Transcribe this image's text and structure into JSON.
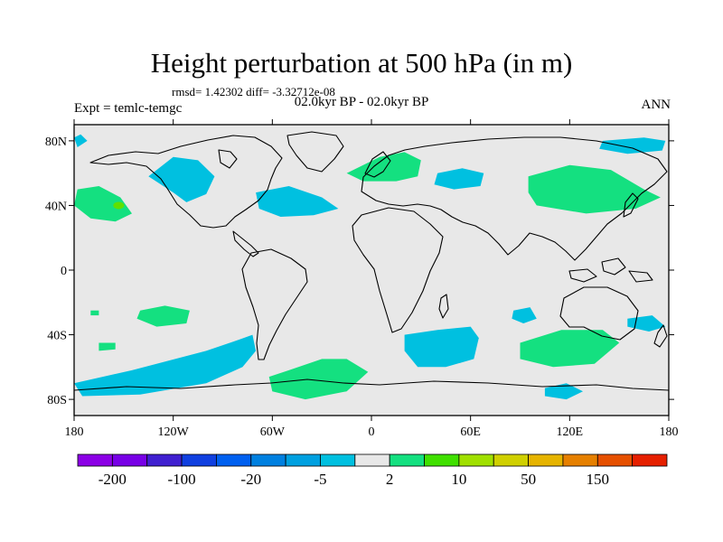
{
  "title": "Height perturbation at 500 hPa (in m)",
  "stats": "rmsd= 1.42302 diff= -3.32712e-08",
  "experiment": "Expt = temlc-temgc",
  "period": "02.0kyr BP - 02.0kyr BP",
  "season": "ANN",
  "map": {
    "lon_range": [
      -180,
      180
    ],
    "lat_range": [
      -90,
      90
    ],
    "background_color": "#e8e8e8",
    "lat_ticks": [
      {
        "value": 80,
        "label": "80N"
      },
      {
        "value": 40,
        "label": "40N"
      },
      {
        "value": 0,
        "label": "0"
      },
      {
        "value": -40,
        "label": "40S"
      },
      {
        "value": -80,
        "label": "80S"
      }
    ],
    "lon_ticks": [
      {
        "value": -180,
        "label": "180"
      },
      {
        "value": -120,
        "label": "120W"
      },
      {
        "value": -60,
        "label": "60W"
      },
      {
        "value": 0,
        "label": "0"
      },
      {
        "value": 60,
        "label": "60E"
      },
      {
        "value": 120,
        "label": "120E"
      },
      {
        "value": 180,
        "label": "180"
      }
    ],
    "anomalies": [
      {
        "sign": "negative",
        "color": "#00c0e0",
        "points": [
          [
            -120,
            70
          ],
          [
            -105,
            68
          ],
          [
            -95,
            58
          ],
          [
            -100,
            47
          ],
          [
            -112,
            42
          ],
          [
            -120,
            48
          ],
          [
            -135,
            58
          ]
        ]
      },
      {
        "sign": "negative",
        "color": "#00c0e0",
        "points": [
          [
            -70,
            48
          ],
          [
            -50,
            52
          ],
          [
            -30,
            45
          ],
          [
            -20,
            38
          ],
          [
            -35,
            34
          ],
          [
            -55,
            33
          ],
          [
            -68,
            38
          ]
        ]
      },
      {
        "sign": "negative",
        "color": "#00c0e0",
        "points": [
          [
            140,
            80
          ],
          [
            165,
            82
          ],
          [
            178,
            80
          ],
          [
            176,
            74
          ],
          [
            155,
            72
          ],
          [
            138,
            75
          ]
        ]
      },
      {
        "sign": "negative",
        "color": "#00c0e0",
        "points": [
          [
            -180,
            82
          ],
          [
            -176,
            84
          ],
          [
            -172,
            80
          ],
          [
            -178,
            76
          ]
        ]
      },
      {
        "sign": "negative",
        "color": "#00c0e0",
        "points": [
          [
            40,
            60
          ],
          [
            55,
            63
          ],
          [
            68,
            60
          ],
          [
            66,
            52
          ],
          [
            50,
            50
          ],
          [
            38,
            53
          ]
        ]
      },
      {
        "sign": "negative",
        "color": "#00c0e0",
        "points": [
          [
            -180,
            -70
          ],
          [
            -145,
            -62
          ],
          [
            -100,
            -50
          ],
          [
            -80,
            -43
          ],
          [
            -72,
            -40
          ],
          [
            -70,
            -50
          ],
          [
            -78,
            -60
          ],
          [
            -100,
            -70
          ],
          [
            -140,
            -77
          ],
          [
            -175,
            -78
          ]
        ]
      },
      {
        "sign": "negative",
        "color": "#00c0e0",
        "points": [
          [
            20,
            -40
          ],
          [
            40,
            -37
          ],
          [
            60,
            -35
          ],
          [
            65,
            -42
          ],
          [
            62,
            -55
          ],
          [
            45,
            -60
          ],
          [
            28,
            -60
          ],
          [
            20,
            -50
          ]
        ]
      },
      {
        "sign": "negative",
        "color": "#00c0e0",
        "points": [
          [
            86,
            -25
          ],
          [
            96,
            -23
          ],
          [
            100,
            -30
          ],
          [
            92,
            -33
          ],
          [
            85,
            -30
          ]
        ]
      },
      {
        "sign": "negative",
        "color": "#00c0e0",
        "points": [
          [
            155,
            -30
          ],
          [
            170,
            -28
          ],
          [
            178,
            -35
          ],
          [
            168,
            -38
          ],
          [
            155,
            -35
          ]
        ]
      },
      {
        "sign": "negative",
        "color": "#00c0e0",
        "points": [
          [
            105,
            -73
          ],
          [
            118,
            -70
          ],
          [
            128,
            -75
          ],
          [
            118,
            -80
          ],
          [
            105,
            -78
          ]
        ]
      },
      {
        "sign": "positive",
        "color": "#14e080",
        "points": [
          [
            -178,
            50
          ],
          [
            -165,
            52
          ],
          [
            -152,
            45
          ],
          [
            -145,
            35
          ],
          [
            -155,
            30
          ],
          [
            -170,
            32
          ],
          [
            -180,
            40
          ]
        ]
      },
      {
        "sign": "positive",
        "color": "#14e080",
        "points": [
          [
            -15,
            60
          ],
          [
            5,
            70
          ],
          [
            20,
            73
          ],
          [
            30,
            68
          ],
          [
            28,
            58
          ],
          [
            15,
            55
          ],
          [
            -5,
            55
          ]
        ]
      },
      {
        "sign": "positive",
        "color": "#14e080",
        "points": [
          [
            95,
            58
          ],
          [
            120,
            65
          ],
          [
            145,
            62
          ],
          [
            165,
            50
          ],
          [
            175,
            45
          ],
          [
            160,
            38
          ],
          [
            130,
            35
          ],
          [
            100,
            40
          ],
          [
            95,
            48
          ]
        ]
      },
      {
        "sign": "positive",
        "color": "#14e080",
        "points": [
          [
            -140,
            -25
          ],
          [
            -125,
            -22
          ],
          [
            -110,
            -25
          ],
          [
            -112,
            -33
          ],
          [
            -130,
            -35
          ],
          [
            -142,
            -30
          ]
        ]
      },
      {
        "sign": "positive",
        "color": "#14e080",
        "points": [
          [
            -165,
            -45
          ],
          [
            -155,
            -45
          ],
          [
            -155,
            -49
          ],
          [
            -165,
            -50
          ]
        ]
      },
      {
        "sign": "positive",
        "color": "#14e080",
        "points": [
          [
            -50,
            -62
          ],
          [
            -30,
            -55
          ],
          [
            -15,
            -55
          ],
          [
            -2,
            -63
          ],
          [
            -15,
            -75
          ],
          [
            -40,
            -80
          ],
          [
            -60,
            -75
          ],
          [
            -62,
            -66
          ]
        ]
      },
      {
        "sign": "positive",
        "color": "#14e080",
        "points": [
          [
            90,
            -45
          ],
          [
            115,
            -37
          ],
          [
            140,
            -37
          ],
          [
            150,
            -45
          ],
          [
            135,
            -58
          ],
          [
            110,
            -60
          ],
          [
            90,
            -55
          ]
        ]
      },
      {
        "sign": "positive",
        "color": "#14e080",
        "points": [
          [
            -170,
            -25
          ],
          [
            -165,
            -25
          ],
          [
            -165,
            -28
          ],
          [
            -170,
            -28
          ]
        ]
      }
    ],
    "accent_spots": [
      {
        "color": "#60e000",
        "lon": -153,
        "lat": 40
      }
    ]
  },
  "colorbar": {
    "colors": [
      "#8c00e6",
      "#7800e6",
      "#4020d0",
      "#1040e0",
      "#0060f0",
      "#0080e0",
      "#00a0e0",
      "#00c0e0",
      "#e8e8e8",
      "#14e080",
      "#40e000",
      "#a0e000",
      "#d0d000",
      "#e6b400",
      "#e68000",
      "#e65000",
      "#e62000"
    ],
    "labels": [
      {
        "after_box": 1,
        "text": "-200"
      },
      {
        "after_box": 3,
        "text": "-100"
      },
      {
        "after_box": 5,
        "text": "-20"
      },
      {
        "after_box": 7,
        "text": "-5"
      },
      {
        "after_box": 9,
        "text": "2"
      },
      {
        "after_box": 11,
        "text": "10"
      },
      {
        "after_box": 13,
        "text": "50"
      },
      {
        "after_box": 15,
        "text": "150"
      }
    ]
  }
}
